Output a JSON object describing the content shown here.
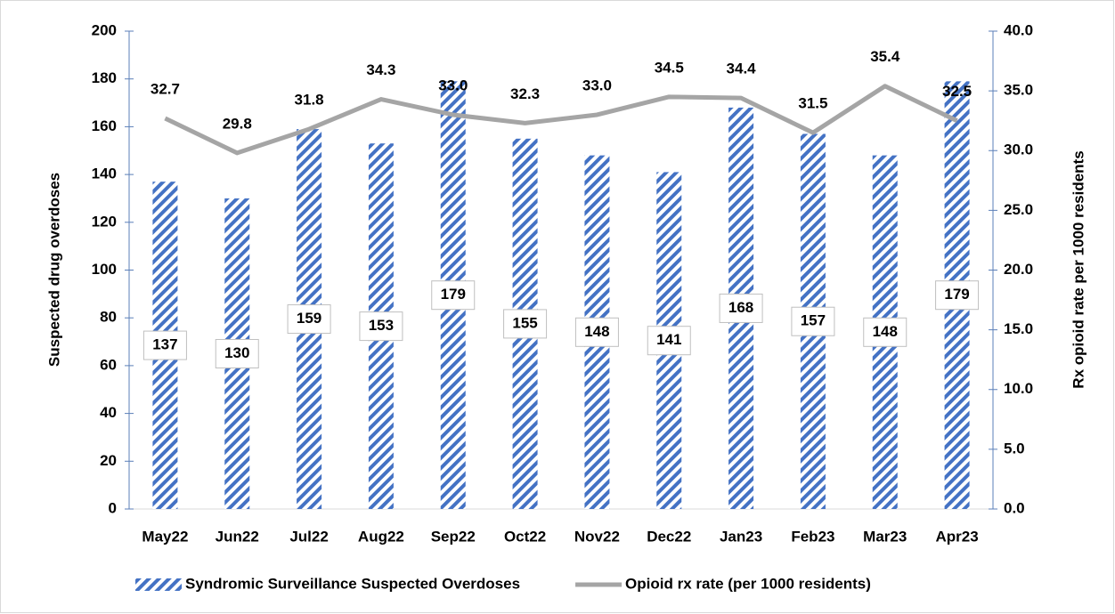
{
  "chart_data": {
    "type": "bar",
    "categories": [
      "May22",
      "Jun22",
      "Jul22",
      "Aug22",
      "Sep22",
      "Oct22",
      "Nov22",
      "Dec22",
      "Jan23",
      "Feb23",
      "Mar23",
      "Apr23"
    ],
    "series": [
      {
        "name": "Syndromic Surveillance Suspected Overdoses",
        "type": "bar",
        "color": "#4472c4",
        "values": [
          137,
          130,
          159,
          153,
          179,
          155,
          148,
          141,
          168,
          157,
          148,
          179
        ]
      },
      {
        "name": "Opioid rx rate (per 1000 residents)",
        "type": "line",
        "axis": "y2",
        "color": "#a5a5a5",
        "values": [
          32.7,
          29.8,
          31.8,
          34.3,
          33.0,
          32.3,
          33.0,
          34.5,
          34.4,
          31.5,
          35.4,
          32.5
        ],
        "value_labels": [
          "32.7",
          "29.8",
          "31.8",
          "34.3",
          "33.0",
          "32.3",
          "33.0",
          "34.5",
          "34.4",
          "31.5",
          "35.4",
          "32.5"
        ]
      }
    ],
    "y_label": "Suspected drug overdoses",
    "y2_label": "Rx opioid rate per 1000 residents",
    "ylim": [
      0,
      200
    ],
    "yticks": [
      0,
      20,
      40,
      60,
      80,
      100,
      120,
      140,
      160,
      180,
      200
    ],
    "y2lim": [
      0,
      40
    ],
    "y2ticks": [
      {
        "value": 0,
        "label": "0.0"
      },
      {
        "value": 5,
        "label": "5.0"
      },
      {
        "value": 10,
        "label": "10.0"
      },
      {
        "value": 15,
        "label": "15.0"
      },
      {
        "value": 20,
        "label": "20.0"
      },
      {
        "value": 25,
        "label": "25.0"
      },
      {
        "value": 30,
        "label": "30.0"
      },
      {
        "value": 35,
        "label": "35.0"
      },
      {
        "value": 40,
        "label": "40.0"
      }
    ],
    "grid": false,
    "legend": "bottom"
  }
}
